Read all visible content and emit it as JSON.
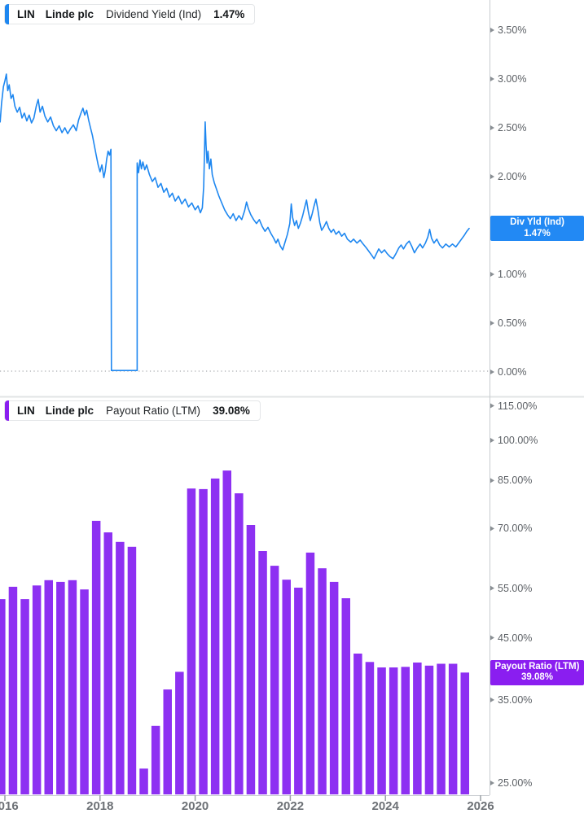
{
  "widget": {
    "panels": [
      {
        "id": "dividend-yield",
        "legend": {
          "ticker": "LIN",
          "company": "Linde plc",
          "metric": "Dividend Yield (Ind)",
          "value": "1.47%"
        },
        "badge": {
          "line1": "Div Yld (Ind)",
          "line2": "1.47%"
        },
        "accent_color": "#1e87f0",
        "badge_color": "#2289f4"
      },
      {
        "id": "payout-ratio",
        "legend": {
          "ticker": "LIN",
          "company": "Linde plc",
          "metric": "Payout Ratio (LTM)",
          "value": "39.08%"
        },
        "badge": {
          "line1": "Payout Ratio (LTM)",
          "line2": "39.08%"
        },
        "accent_color": "#8a1ef0",
        "badge_color": "#8a1ef0"
      }
    ],
    "x_axis": {
      "tick_years": [
        2016,
        2018,
        2020,
        2022,
        2024,
        2026
      ]
    }
  },
  "chart_data": [
    {
      "type": "line",
      "title": "LIN Linde plc Dividend Yield (Ind)",
      "series_name": "Div Yld (Ind)",
      "unit": "%",
      "current_value": 1.47,
      "color": "#1e87f0",
      "axis": {
        "scale": "linear",
        "side": "right",
        "y_ticks": [
          3.5,
          3.0,
          2.5,
          2.0,
          1.5,
          1.0,
          0.5,
          0.0
        ],
        "ylim": [
          0,
          3.75
        ],
        "zero_line_dotted": true
      },
      "x_range": [
        2015.9,
        2026.2
      ],
      "points": [
        [
          2015.9,
          2.56
        ],
        [
          2015.93,
          2.75
        ],
        [
          2015.97,
          2.92
        ],
        [
          2016.0,
          2.98
        ],
        [
          2016.03,
          3.05
        ],
        [
          2016.06,
          2.88
        ],
        [
          2016.09,
          2.94
        ],
        [
          2016.13,
          2.8
        ],
        [
          2016.17,
          2.84
        ],
        [
          2016.21,
          2.72
        ],
        [
          2016.26,
          2.66
        ],
        [
          2016.31,
          2.71
        ],
        [
          2016.36,
          2.6
        ],
        [
          2016.41,
          2.65
        ],
        [
          2016.46,
          2.57
        ],
        [
          2016.51,
          2.63
        ],
        [
          2016.56,
          2.55
        ],
        [
          2016.61,
          2.6
        ],
        [
          2016.66,
          2.72
        ],
        [
          2016.7,
          2.79
        ],
        [
          2016.74,
          2.66
        ],
        [
          2016.79,
          2.72
        ],
        [
          2016.84,
          2.62
        ],
        [
          2016.9,
          2.56
        ],
        [
          2016.96,
          2.61
        ],
        [
          2017.02,
          2.52
        ],
        [
          2017.08,
          2.47
        ],
        [
          2017.14,
          2.52
        ],
        [
          2017.2,
          2.45
        ],
        [
          2017.26,
          2.5
        ],
        [
          2017.32,
          2.44
        ],
        [
          2017.38,
          2.49
        ],
        [
          2017.44,
          2.53
        ],
        [
          2017.5,
          2.47
        ],
        [
          2017.55,
          2.58
        ],
        [
          2017.6,
          2.65
        ],
        [
          2017.64,
          2.7
        ],
        [
          2017.68,
          2.63
        ],
        [
          2017.72,
          2.68
        ],
        [
          2017.76,
          2.58
        ],
        [
          2017.8,
          2.5
        ],
        [
          2017.84,
          2.42
        ],
        [
          2017.88,
          2.32
        ],
        [
          2017.92,
          2.22
        ],
        [
          2017.96,
          2.12
        ],
        [
          2018.0,
          2.05
        ],
        [
          2018.04,
          2.12
        ],
        [
          2018.08,
          1.99
        ],
        [
          2018.11,
          2.06
        ],
        [
          2018.14,
          2.18
        ],
        [
          2018.17,
          2.26
        ],
        [
          2018.2,
          2.22
        ],
        [
          2018.23,
          2.28
        ],
        [
          2018.24,
          0.015
        ],
        [
          2018.78,
          0.015
        ],
        [
          2018.78,
          2.14
        ],
        [
          2018.81,
          2.04
        ],
        [
          2018.84,
          2.17
        ],
        [
          2018.87,
          2.08
        ],
        [
          2018.9,
          2.15
        ],
        [
          2018.94,
          2.07
        ],
        [
          2018.98,
          2.12
        ],
        [
          2019.04,
          2.02
        ],
        [
          2019.1,
          1.95
        ],
        [
          2019.16,
          1.99
        ],
        [
          2019.22,
          1.89
        ],
        [
          2019.28,
          1.93
        ],
        [
          2019.34,
          1.84
        ],
        [
          2019.4,
          1.88
        ],
        [
          2019.46,
          1.79
        ],
        [
          2019.52,
          1.83
        ],
        [
          2019.58,
          1.75
        ],
        [
          2019.65,
          1.8
        ],
        [
          2019.72,
          1.72
        ],
        [
          2019.79,
          1.77
        ],
        [
          2019.86,
          1.69
        ],
        [
          2019.93,
          1.73
        ],
        [
          2020.0,
          1.66
        ],
        [
          2020.06,
          1.7
        ],
        [
          2020.11,
          1.63
        ],
        [
          2020.15,
          1.68
        ],
        [
          2020.18,
          1.9
        ],
        [
          2020.21,
          2.56
        ],
        [
          2020.23,
          2.32
        ],
        [
          2020.25,
          2.14
        ],
        [
          2020.27,
          2.26
        ],
        [
          2020.3,
          2.08
        ],
        [
          2020.33,
          2.18
        ],
        [
          2020.36,
          2.02
        ],
        [
          2020.4,
          1.94
        ],
        [
          2020.45,
          1.87
        ],
        [
          2020.5,
          1.8
        ],
        [
          2020.56,
          1.73
        ],
        [
          2020.62,
          1.66
        ],
        [
          2020.68,
          1.61
        ],
        [
          2020.74,
          1.57
        ],
        [
          2020.8,
          1.62
        ],
        [
          2020.86,
          1.55
        ],
        [
          2020.92,
          1.6
        ],
        [
          2020.98,
          1.56
        ],
        [
          2021.04,
          1.65
        ],
        [
          2021.08,
          1.74
        ],
        [
          2021.12,
          1.67
        ],
        [
          2021.17,
          1.61
        ],
        [
          2021.23,
          1.56
        ],
        [
          2021.29,
          1.52
        ],
        [
          2021.35,
          1.56
        ],
        [
          2021.41,
          1.49
        ],
        [
          2021.47,
          1.44
        ],
        [
          2021.53,
          1.48
        ],
        [
          2021.59,
          1.42
        ],
        [
          2021.65,
          1.37
        ],
        [
          2021.7,
          1.32
        ],
        [
          2021.74,
          1.36
        ],
        [
          2021.79,
          1.29
        ],
        [
          2021.84,
          1.25
        ],
        [
          2021.89,
          1.33
        ],
        [
          2021.94,
          1.41
        ],
        [
          2021.99,
          1.52
        ],
        [
          2022.02,
          1.72
        ],
        [
          2022.05,
          1.58
        ],
        [
          2022.09,
          1.5
        ],
        [
          2022.13,
          1.55
        ],
        [
          2022.17,
          1.47
        ],
        [
          2022.21,
          1.52
        ],
        [
          2022.26,
          1.6
        ],
        [
          2022.3,
          1.68
        ],
        [
          2022.34,
          1.76
        ],
        [
          2022.38,
          1.64
        ],
        [
          2022.42,
          1.55
        ],
        [
          2022.46,
          1.62
        ],
        [
          2022.5,
          1.7
        ],
        [
          2022.54,
          1.77
        ],
        [
          2022.58,
          1.66
        ],
        [
          2022.62,
          1.53
        ],
        [
          2022.66,
          1.45
        ],
        [
          2022.71,
          1.49
        ],
        [
          2022.76,
          1.54
        ],
        [
          2022.81,
          1.47
        ],
        [
          2022.86,
          1.43
        ],
        [
          2022.91,
          1.46
        ],
        [
          2022.96,
          1.41
        ],
        [
          2023.02,
          1.44
        ],
        [
          2023.08,
          1.39
        ],
        [
          2023.14,
          1.42
        ],
        [
          2023.2,
          1.36
        ],
        [
          2023.27,
          1.33
        ],
        [
          2023.33,
          1.36
        ],
        [
          2023.4,
          1.32
        ],
        [
          2023.47,
          1.35
        ],
        [
          2023.53,
          1.31
        ],
        [
          2023.6,
          1.27
        ],
        [
          2023.66,
          1.23
        ],
        [
          2023.72,
          1.19
        ],
        [
          2023.76,
          1.16
        ],
        [
          2023.81,
          1.21
        ],
        [
          2023.86,
          1.26
        ],
        [
          2023.92,
          1.22
        ],
        [
          2023.98,
          1.25
        ],
        [
          2024.04,
          1.21
        ],
        [
          2024.1,
          1.18
        ],
        [
          2024.16,
          1.16
        ],
        [
          2024.22,
          1.21
        ],
        [
          2024.28,
          1.27
        ],
        [
          2024.33,
          1.3
        ],
        [
          2024.38,
          1.26
        ],
        [
          2024.44,
          1.31
        ],
        [
          2024.5,
          1.34
        ],
        [
          2024.56,
          1.28
        ],
        [
          2024.61,
          1.22
        ],
        [
          2024.67,
          1.27
        ],
        [
          2024.73,
          1.31
        ],
        [
          2024.78,
          1.27
        ],
        [
          2024.84,
          1.32
        ],
        [
          2024.89,
          1.38
        ],
        [
          2024.93,
          1.46
        ],
        [
          2024.97,
          1.37
        ],
        [
          2025.02,
          1.32
        ],
        [
          2025.08,
          1.36
        ],
        [
          2025.14,
          1.3
        ],
        [
          2025.2,
          1.27
        ],
        [
          2025.27,
          1.31
        ],
        [
          2025.34,
          1.28
        ],
        [
          2025.41,
          1.31
        ],
        [
          2025.48,
          1.28
        ],
        [
          2025.54,
          1.32
        ],
        [
          2025.6,
          1.36
        ],
        [
          2025.66,
          1.4
        ],
        [
          2025.71,
          1.44
        ],
        [
          2025.76,
          1.47
        ]
      ]
    },
    {
      "type": "bar",
      "title": "LIN Linde plc Payout Ratio (LTM)",
      "series_name": "Payout Ratio (LTM)",
      "unit": "%",
      "current_value": 39.08,
      "color": "#8d30f2",
      "axis": {
        "scale": "log",
        "side": "right",
        "y_ticks": [
          115,
          100,
          85,
          70,
          55,
          45,
          35,
          25
        ],
        "ylim": [
          23,
          120
        ]
      },
      "start_year": 2015.92,
      "interval_years": 0.25,
      "categories": [
        "2015 Q4",
        "2016 Q1",
        "2016 Q2",
        "2016 Q3",
        "2016 Q4",
        "2017 Q1",
        "2017 Q2",
        "2017 Q3",
        "2017 Q4",
        "2018 Q1",
        "2018 Q2",
        "2018 Q3",
        "2018 Q4",
        "2019 Q1",
        "2019 Q2",
        "2019 Q3",
        "2019 Q4",
        "2020 Q1",
        "2020 Q2",
        "2020 Q3",
        "2020 Q4",
        "2021 Q1",
        "2021 Q2",
        "2021 Q3",
        "2021 Q4",
        "2022 Q1",
        "2022 Q2",
        "2022 Q3",
        "2022 Q4",
        "2023 Q1",
        "2023 Q2",
        "2023 Q3",
        "2023 Q4",
        "2024 Q1",
        "2024 Q2",
        "2024 Q3",
        "2024 Q4",
        "2025 Q1",
        "2025 Q2",
        "2025 Q3"
      ],
      "values": [
        52.6,
        55.3,
        52.6,
        55.6,
        56.8,
        56.4,
        56.8,
        54.7,
        72.2,
        68.9,
        66.3,
        65.0,
        26.5,
        31.5,
        36.5,
        39.2,
        82.3,
        82.1,
        85.7,
        88.5,
        80.7,
        71.0,
        63.9,
        60.2,
        56.9,
        55.1,
        63.5,
        59.6,
        56.4,
        52.8,
        42.2,
        40.8,
        39.9,
        39.9,
        40.0,
        40.7,
        40.2,
        40.5,
        40.5,
        39.08
      ]
    }
  ]
}
